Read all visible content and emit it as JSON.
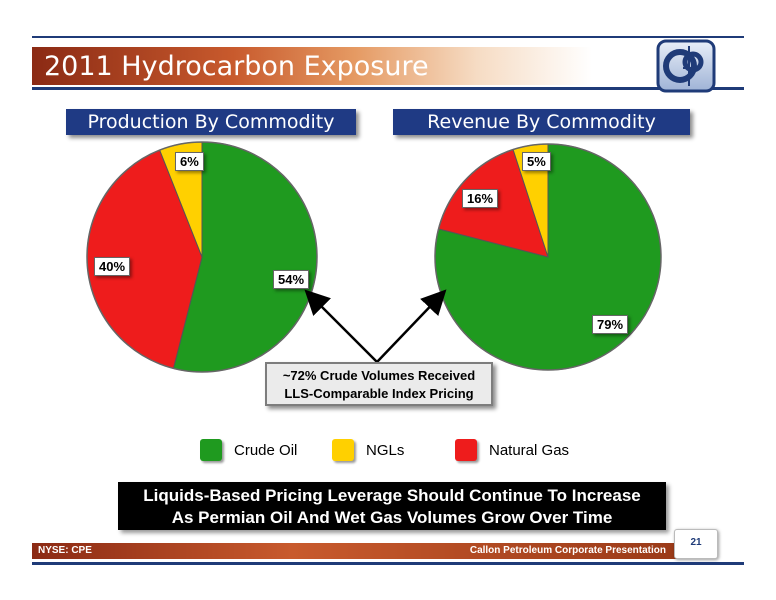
{
  "slide": {
    "title": "2011 Hydrocarbon Exposure",
    "footer_left": "NYSE: CPE",
    "footer_right": "Callon Petroleum Corporate Presentation",
    "page_number": "21"
  },
  "colors": {
    "crude_oil": "#1f9a1f",
    "ngls": "#ffd000",
    "natural_gas": "#ee1c1c",
    "navy": "#1f3a84"
  },
  "callout": {
    "line1": "~72% Crude Volumes Received",
    "line2": "LLS-Comparable Index Pricing"
  },
  "banner": {
    "line1": "Liquids-Based Pricing Leverage Should Continue To Increase",
    "line2": "As Permian Oil And Wet Gas Volumes Grow Over Time"
  },
  "legend": [
    {
      "label": "Crude Oil",
      "color": "#1f9a1f"
    },
    {
      "label": "NGLs",
      "color": "#ffd000"
    },
    {
      "label": "Natural Gas",
      "color": "#ee1c1c"
    }
  ],
  "chart_data": [
    {
      "type": "pie",
      "title": "Production By Commodity",
      "slices": [
        {
          "name": "Crude Oil",
          "value": 54,
          "label": "54%"
        },
        {
          "name": "Natural Gas",
          "value": 40,
          "label": "40%"
        },
        {
          "name": "NGLs",
          "value": 6,
          "label": "6%"
        }
      ],
      "legend": "bottom"
    },
    {
      "type": "pie",
      "title": "Revenue By Commodity",
      "slices": [
        {
          "name": "Crude Oil",
          "value": 79,
          "label": "79%"
        },
        {
          "name": "Natural Gas",
          "value": 16,
          "label": "16%"
        },
        {
          "name": "NGLs",
          "value": 5,
          "label": "5%"
        }
      ],
      "legend": "bottom"
    }
  ]
}
